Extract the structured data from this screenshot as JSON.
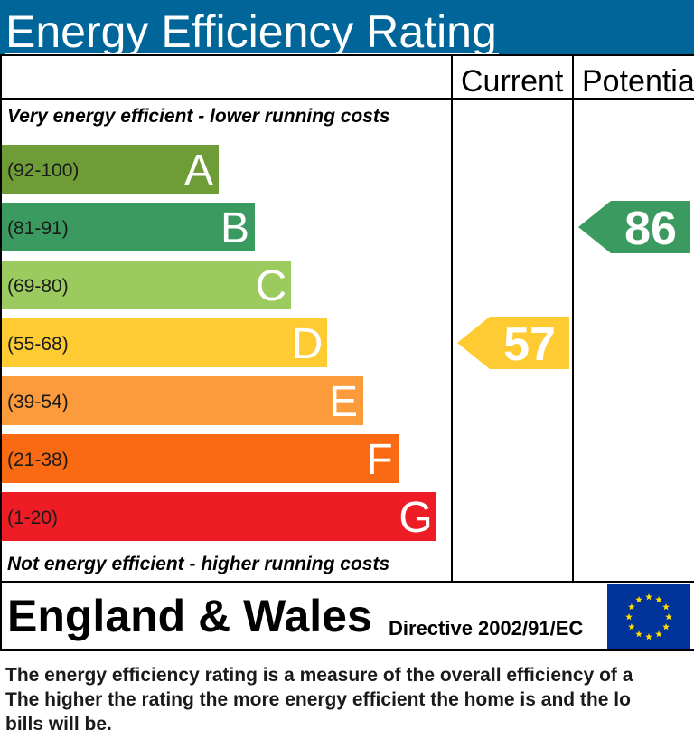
{
  "header": {
    "title": "Energy Efficiency Rating"
  },
  "chart_data": {
    "type": "bar",
    "columns": {
      "current": "Current",
      "potential": "Potential"
    },
    "top_note": "Very energy efficient - lower running costs",
    "bottom_note": "Not energy efficient - higher running costs",
    "bands": [
      {
        "letter": "A",
        "range": "(92-100)",
        "color": "#6e9c37"
      },
      {
        "letter": "B",
        "range": "(81-91)",
        "color": "#3b9a5f"
      },
      {
        "letter": "C",
        "range": "(69-80)",
        "color": "#9bcb5e"
      },
      {
        "letter": "D",
        "range": "(55-68)",
        "color": "#fecb33"
      },
      {
        "letter": "E",
        "range": "(39-54)",
        "color": "#fc9b3c"
      },
      {
        "letter": "F",
        "range": "(21-38)",
        "color": "#f96a12"
      },
      {
        "letter": "G",
        "range": "(1-20)",
        "color": "#ee1c25"
      }
    ],
    "current": {
      "value": 57,
      "band": "D",
      "color": "#fecb33"
    },
    "potential": {
      "value": 86,
      "band": "B",
      "color": "#3b9a5f"
    }
  },
  "region": {
    "name": "England & Wales",
    "directive": "Directive 2002/91/EC"
  },
  "eu_flag": {
    "icon": "eu-flag-icon",
    "background": "#003399",
    "stars": "#ffdd00"
  },
  "footer": {
    "lines": [
      "The energy efficiency rating is a measure of the overall efficiency of a",
      "The higher the rating the more energy efficient the home is and the lo",
      "bills will be."
    ]
  }
}
